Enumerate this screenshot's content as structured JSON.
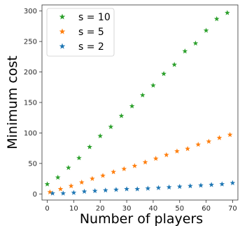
{
  "chart_data": {
    "type": "scatter",
    "xlabel": "Number of players",
    "ylabel": "Minimum cost",
    "xlim": [
      -2,
      72
    ],
    "ylim": [
      -10,
      310
    ],
    "xticks": [
      0,
      10,
      20,
      30,
      40,
      50,
      60,
      70
    ],
    "yticks": [
      0,
      50,
      100,
      150,
      200,
      250,
      300
    ],
    "grid": false,
    "legend_position": "top-left",
    "marker": "star",
    "series": [
      {
        "name": "s = 10",
        "color": "#2ca02c",
        "x": [
          0,
          4,
          8,
          12,
          16,
          20,
          24,
          28,
          32,
          36,
          40,
          44,
          48,
          52,
          56,
          60,
          64,
          68
        ],
        "y": [
          16,
          27,
          43,
          59,
          77,
          95,
          110,
          128,
          144,
          162,
          178,
          197,
          212,
          234,
          247,
          268,
          287,
          297
        ]
      },
      {
        "name": "s = 5",
        "color": "#ff7f0e",
        "x": [
          1,
          5,
          9,
          13,
          17,
          21,
          25,
          29,
          33,
          37,
          41,
          45,
          49,
          53,
          57,
          61,
          65,
          69
        ],
        "y": [
          3,
          8,
          13,
          19,
          25,
          30,
          36,
          41,
          46,
          52,
          58,
          64,
          70,
          74,
          81,
          86,
          92,
          97
        ]
      },
      {
        "name": "s = 2",
        "color": "#1f77b4",
        "x": [
          2,
          6,
          10,
          14,
          18,
          22,
          26,
          30,
          34,
          38,
          42,
          46,
          50,
          54,
          58,
          62,
          66,
          70
        ],
        "y": [
          1,
          1,
          2,
          4,
          5,
          6,
          7,
          8,
          8,
          9,
          10,
          11,
          12,
          13,
          14,
          15,
          16,
          18
        ]
      }
    ]
  }
}
